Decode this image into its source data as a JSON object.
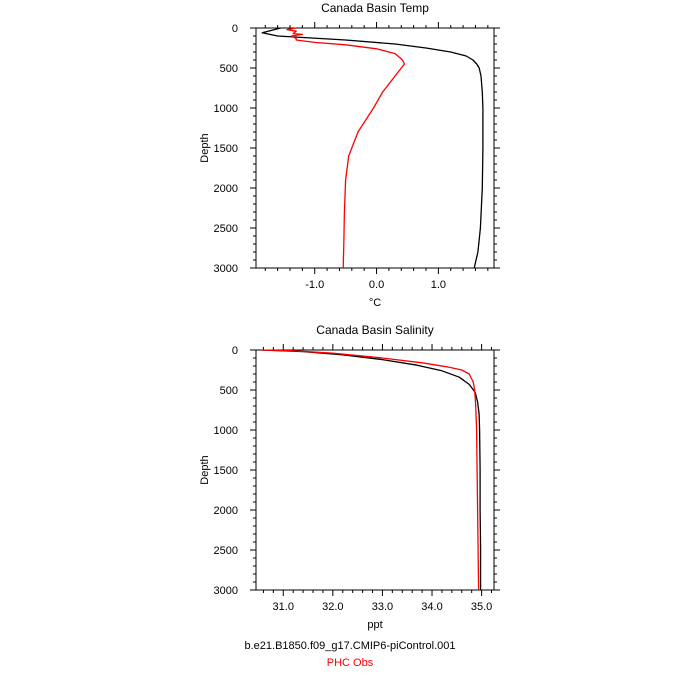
{
  "captions": {
    "model_run": "b.e21.B1850.f09_g17.CMIP6-piControl.001",
    "observations": "PHC Obs"
  },
  "colors": {
    "model": "#000000",
    "observations": "#ff0000",
    "axis": "#000000"
  },
  "chart_data": [
    {
      "type": "line",
      "title": "Canada Basin Temp",
      "xlabel": "°C",
      "ylabel": "Depth",
      "xlim": [
        -1.95,
        1.9
      ],
      "ylim": [
        3000,
        0
      ],
      "y_inverted": true,
      "x_ticks": [
        -1.0,
        0.0,
        1.0
      ],
      "x_tick_labels": [
        "-1.0",
        "0.0",
        "1.0"
      ],
      "x_minor_step": 0.2,
      "y_ticks": [
        0,
        500,
        1000,
        1500,
        2000,
        2500,
        3000
      ],
      "y_tick_labels": [
        "0",
        "500",
        "1000",
        "1500",
        "2000",
        "2500",
        "3000"
      ],
      "y_minor_step": 100,
      "grid": false,
      "series": [
        {
          "role": "model",
          "color": "#000000",
          "points": [
            [
              -1.55,
              0
            ],
            [
              -1.7,
              30
            ],
            [
              -1.85,
              60
            ],
            [
              -1.6,
              100
            ],
            [
              -0.5,
              150
            ],
            [
              0.3,
              200
            ],
            [
              0.8,
              250
            ],
            [
              1.2,
              300
            ],
            [
              1.45,
              350
            ],
            [
              1.56,
              400
            ],
            [
              1.62,
              450
            ],
            [
              1.66,
              500
            ],
            [
              1.69,
              600
            ],
            [
              1.71,
              800
            ],
            [
              1.72,
              1000
            ],
            [
              1.72,
              1500
            ],
            [
              1.71,
              2000
            ],
            [
              1.68,
              2500
            ],
            [
              1.64,
              2800
            ],
            [
              1.58,
              3000
            ]
          ]
        },
        {
          "role": "observations",
          "color": "#ff0000",
          "points": [
            [
              -1.3,
              0
            ],
            [
              -1.45,
              20
            ],
            [
              -1.3,
              40
            ],
            [
              -1.35,
              70
            ],
            [
              -1.2,
              80
            ],
            [
              -1.38,
              100
            ],
            [
              -1.3,
              130
            ],
            [
              -1.3,
              150
            ],
            [
              -1.0,
              180
            ],
            [
              -0.5,
              210
            ],
            [
              0.0,
              260
            ],
            [
              0.3,
              320
            ],
            [
              0.42,
              400
            ],
            [
              0.45,
              450
            ],
            [
              0.3,
              600
            ],
            [
              0.1,
              800
            ],
            [
              -0.05,
              1000
            ],
            [
              -0.3,
              1300
            ],
            [
              -0.45,
              1600
            ],
            [
              -0.5,
              1900
            ],
            [
              -0.52,
              2300
            ],
            [
              -0.53,
              2700
            ],
            [
              -0.54,
              3000
            ]
          ]
        }
      ]
    },
    {
      "type": "line",
      "title": "Canada Basin Salinity",
      "xlabel": "ppt",
      "ylabel": "Depth",
      "xlim": [
        30.45,
        35.25
      ],
      "ylim": [
        3000,
        0
      ],
      "y_inverted": true,
      "x_ticks": [
        31.0,
        32.0,
        33.0,
        34.0,
        35.0
      ],
      "x_tick_labels": [
        "31.0",
        "32.0",
        "33.0",
        "34.0",
        "35.0"
      ],
      "x_minor_step": 0.2,
      "y_ticks": [
        0,
        500,
        1000,
        1500,
        2000,
        2500,
        3000
      ],
      "y_tick_labels": [
        "0",
        "500",
        "1000",
        "1500",
        "2000",
        "2500",
        "3000"
      ],
      "y_minor_step": 100,
      "grid": false,
      "series": [
        {
          "role": "model",
          "color": "#000000",
          "points": [
            [
              30.55,
              0
            ],
            [
              31.4,
              20
            ],
            [
              32.2,
              60
            ],
            [
              33.0,
              120
            ],
            [
              33.7,
              190
            ],
            [
              34.2,
              260
            ],
            [
              34.55,
              340
            ],
            [
              34.75,
              430
            ],
            [
              34.87,
              530
            ],
            [
              34.92,
              650
            ],
            [
              34.95,
              800
            ],
            [
              34.96,
              1000
            ],
            [
              34.97,
              1500
            ],
            [
              34.97,
              2000
            ],
            [
              34.98,
              2500
            ],
            [
              34.98,
              3000
            ]
          ]
        },
        {
          "role": "observations",
          "color": "#ff0000",
          "points": [
            [
              30.55,
              0
            ],
            [
              31.2,
              10
            ],
            [
              32.0,
              40
            ],
            [
              33.0,
              100
            ],
            [
              33.8,
              160
            ],
            [
              34.3,
              210
            ],
            [
              34.6,
              250
            ],
            [
              34.75,
              300
            ],
            [
              34.83,
              400
            ],
            [
              34.86,
              500
            ],
            [
              34.88,
              700
            ],
            [
              34.9,
              1000
            ],
            [
              34.91,
              1500
            ],
            [
              34.92,
              2000
            ],
            [
              34.93,
              2500
            ],
            [
              34.94,
              3000
            ]
          ]
        }
      ]
    }
  ]
}
